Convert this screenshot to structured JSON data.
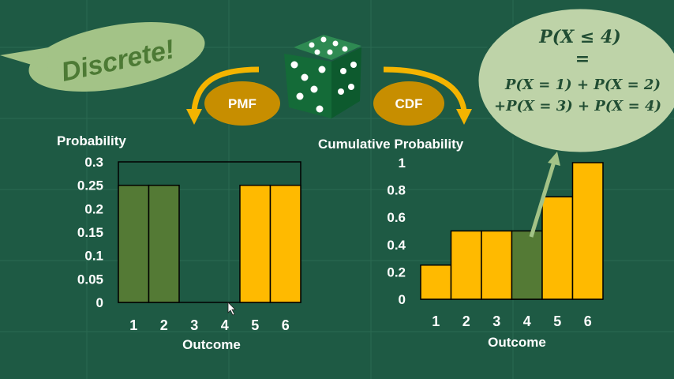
{
  "colors": {
    "background": "#1e5a44",
    "bar_green": "#547a35",
    "bar_yellow": "#ffba00",
    "arrow_gold": "#f4b400",
    "badge_gold": "#c78e00",
    "bubble_green": "#a3c387",
    "formula_bubble": "#bed3a8"
  },
  "bubble": {
    "text": "Discrete!"
  },
  "pmf_badge": {
    "label": "PMF"
  },
  "cdf_badge": {
    "label": "CDF"
  },
  "formula": {
    "line1": "P(X ≤ 4)",
    "line2": "=",
    "line3": "P(X = 1) + P(X = 2)",
    "line4": "+P(X = 3) + P(X = 4)"
  },
  "chart_data": [
    {
      "type": "bar",
      "ylabel": "Probability",
      "xlabel": "Outcome",
      "categories": [
        "1",
        "2",
        "3",
        "4",
        "5",
        "6"
      ],
      "values": [
        0.25,
        0.25,
        0,
        0,
        0.25,
        0.25
      ],
      "bar_colors": [
        "#547a35",
        "#547a35",
        "#547a35",
        "#547a35",
        "#ffba00",
        "#ffba00"
      ],
      "ylim": [
        0,
        0.3
      ],
      "yticks": [
        "0",
        "0.05",
        "0.1",
        "0.15",
        "0.2",
        "0.25",
        "0.3"
      ]
    },
    {
      "type": "bar",
      "ylabel": "Cumulative Probability",
      "xlabel": "Outcome",
      "categories": [
        "1",
        "2",
        "3",
        "4",
        "5",
        "6"
      ],
      "values": [
        0.25,
        0.5,
        0.5,
        0.5,
        0.75,
        1.0
      ],
      "bar_colors": [
        "#ffba00",
        "#ffba00",
        "#ffba00",
        "#547a35",
        "#ffba00",
        "#ffba00"
      ],
      "ylim": [
        0,
        1
      ],
      "yticks": [
        "0",
        "0.2",
        "0.4",
        "0.6",
        "0.8",
        "1"
      ]
    }
  ]
}
